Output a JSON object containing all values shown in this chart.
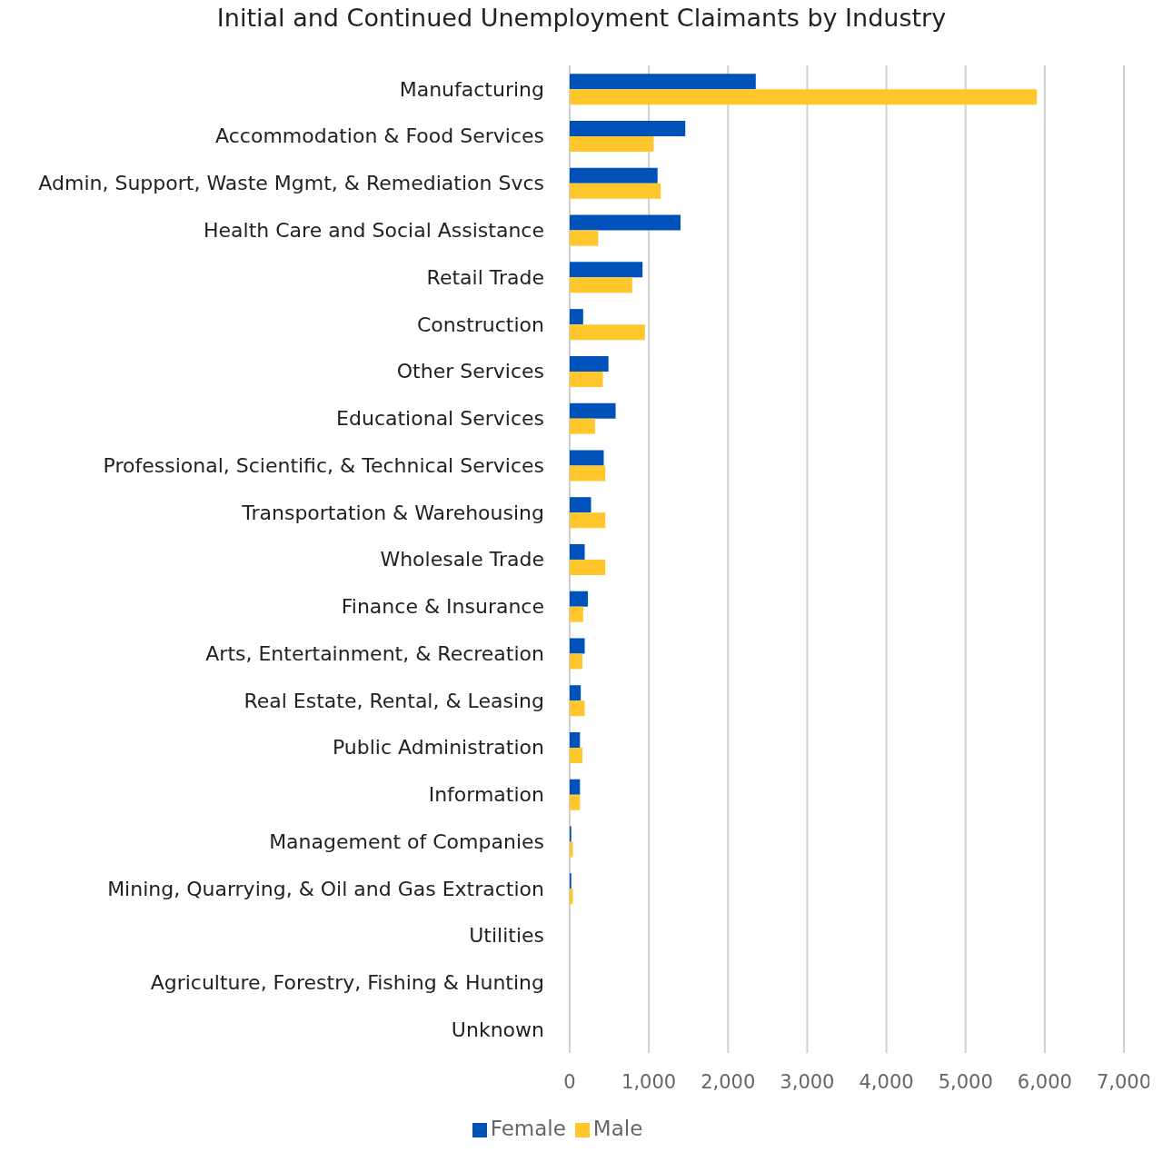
{
  "chart_data": {
    "type": "bar",
    "orientation": "horizontal",
    "title": "Initial and Continued Unemployment Claimants by Industry",
    "categories": [
      "Manufacturing",
      "Accommodation & Food Services",
      "Admin, Support, Waste Mgmt, & Remediation Svcs",
      "Health Care and Social Assistance",
      "Retail Trade",
      "Construction",
      "Other Services",
      "Educational Services",
      "Professional, Scientific, & Technical Services",
      "Transportation & Warehousing",
      "Wholesale Trade",
      "Finance & Insurance",
      "Arts, Entertainment, & Recreation",
      "Real Estate, Rental, & Leasing",
      "Public Administration",
      "Information",
      "Management of Companies",
      "Mining, Quarrying, & Oil and Gas Extraction",
      "Utilities",
      "Agriculture, Forestry, Fishing & Hunting",
      "Unknown"
    ],
    "series": [
      {
        "name": "Female",
        "color": "#0052bb",
        "values": [
          2350,
          1460,
          1110,
          1400,
          920,
          170,
          490,
          580,
          430,
          270,
          190,
          230,
          190,
          140,
          130,
          130,
          20,
          20,
          0,
          0,
          0
        ]
      },
      {
        "name": "Male",
        "color": "#ffc72c",
        "values": [
          5900,
          1060,
          1150,
          360,
          790,
          950,
          420,
          320,
          450,
          450,
          450,
          170,
          160,
          190,
          160,
          130,
          40,
          40,
          0,
          0,
          0
        ]
      }
    ],
    "xlim": [
      0,
      7000
    ],
    "xticks": [
      {
        "value": 0,
        "label": "0"
      },
      {
        "value": 1000,
        "label": "1,000"
      },
      {
        "value": 2000,
        "label": "2,000"
      },
      {
        "value": 3000,
        "label": "3,000"
      },
      {
        "value": 4000,
        "label": "4,000"
      },
      {
        "value": 5000,
        "label": "5,000"
      },
      {
        "value": 6000,
        "label": "6,000"
      },
      {
        "value": 7000,
        "label": "7,000"
      }
    ],
    "grid": "x",
    "legend": "bottom"
  }
}
